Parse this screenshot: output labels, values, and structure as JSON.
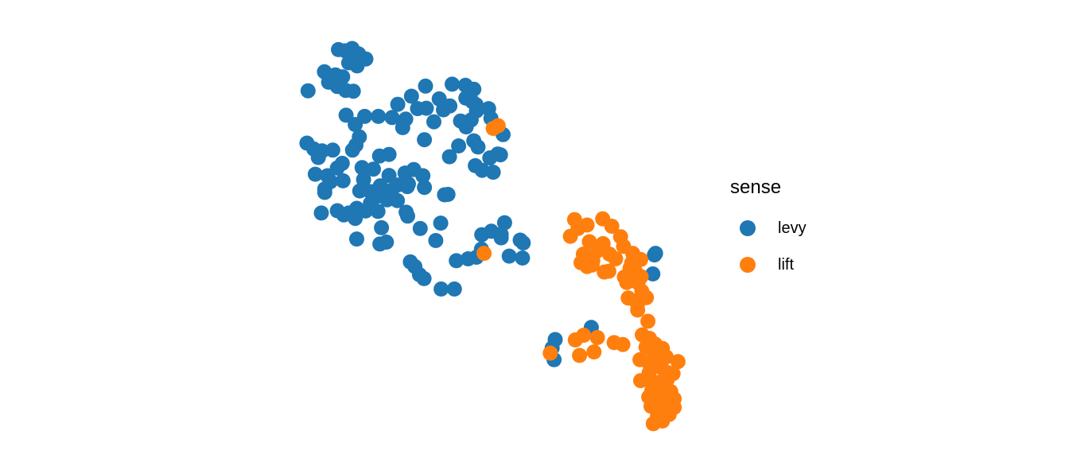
{
  "chart_data": {
    "type": "scatter",
    "xlabel": "",
    "ylabel": "",
    "xlim": [
      0,
      100
    ],
    "ylim": [
      0,
      100
    ],
    "legend_position": "right",
    "legend_title": "sense",
    "series": [
      {
        "name": "levy",
        "color": "#1f77b4",
        "points": [
          [
            11.2,
            99.5
          ],
          [
            13.0,
            99.2
          ],
          [
            14.8,
            99.8
          ],
          [
            16.5,
            98.4
          ],
          [
            18.4,
            97.1
          ],
          [
            13.9,
            96.1
          ],
          [
            16.1,
            95.3
          ],
          [
            7.5,
            93.8
          ],
          [
            10.4,
            93.0
          ],
          [
            12.3,
            92.5
          ],
          [
            8.6,
            91.1
          ],
          [
            10.9,
            90.0
          ],
          [
            3.2,
            88.9
          ],
          [
            13.1,
            89.0
          ],
          [
            15.1,
            88.8
          ],
          [
            34.1,
            90.1
          ],
          [
            41.1,
            90.6
          ],
          [
            44.6,
            90.3
          ],
          [
            46.8,
            89.3
          ],
          [
            30.4,
            87.5
          ],
          [
            37.7,
            86.8
          ],
          [
            44.7,
            87.0
          ],
          [
            46.4,
            86.1
          ],
          [
            26.8,
            85.4
          ],
          [
            32.0,
            84.3
          ],
          [
            34.3,
            84.4
          ],
          [
            38.8,
            84.0
          ],
          [
            47.4,
            85.3
          ],
          [
            50.7,
            84.3
          ],
          [
            40.5,
            85.0
          ],
          [
            13.2,
            82.6
          ],
          [
            18.1,
            82.3
          ],
          [
            25.3,
            82.0
          ],
          [
            43.3,
            81.1
          ],
          [
            47.5,
            83.7
          ],
          [
            21.7,
            82.3
          ],
          [
            15.6,
            80.2
          ],
          [
            28.9,
            81.6
          ],
          [
            36.3,
            80.9
          ],
          [
            46.1,
            81.4
          ],
          [
            51.3,
            81.8
          ],
          [
            44.8,
            79.6
          ],
          [
            28.1,
            79.4
          ],
          [
            16.7,
            77.0
          ],
          [
            54.5,
            77.6
          ],
          [
            33.8,
            76.3
          ],
          [
            46.8,
            76.0
          ],
          [
            2.9,
            75.4
          ],
          [
            15.8,
            74.9
          ],
          [
            4.7,
            73.9
          ],
          [
            6.9,
            73.4
          ],
          [
            9.7,
            73.6
          ],
          [
            14.9,
            73.6
          ],
          [
            24.5,
            72.5
          ],
          [
            22.0,
            72.1
          ],
          [
            42.8,
            74.7
          ],
          [
            47.9,
            74.4
          ],
          [
            53.8,
            72.4
          ],
          [
            51.0,
            71.6
          ],
          [
            53.1,
            72.6
          ],
          [
            5.9,
            71.7
          ],
          [
            12.2,
            70.2
          ],
          [
            10.9,
            69.0
          ],
          [
            40.4,
            71.9
          ],
          [
            47.2,
            69.6
          ],
          [
            51.9,
            67.9
          ],
          [
            17.4,
            69.1
          ],
          [
            20.4,
            68.7
          ],
          [
            49.0,
            68.4
          ],
          [
            31.0,
            68.6
          ],
          [
            33.4,
            67.0
          ],
          [
            5.1,
            67.4
          ],
          [
            8.3,
            67.0
          ],
          [
            17.8,
            66.0
          ],
          [
            24.5,
            67.1
          ],
          [
            28.7,
            67.7
          ],
          [
            9.1,
            65.5
          ],
          [
            12.4,
            65.7
          ],
          [
            22.2,
            64.4
          ],
          [
            26.7,
            64.6
          ],
          [
            29.6,
            64.9
          ],
          [
            7.6,
            63.6
          ],
          [
            7.6,
            62.7
          ],
          [
            16.8,
            63.1
          ],
          [
            19.6,
            62.9
          ],
          [
            24.9,
            63.2
          ],
          [
            29.3,
            64.2
          ],
          [
            33.8,
            64.0
          ],
          [
            39.1,
            62.1
          ],
          [
            40.0,
            62.2
          ],
          [
            21.4,
            61.7
          ],
          [
            25.1,
            62.2
          ],
          [
            19.6,
            59.9
          ],
          [
            24.0,
            60.8
          ],
          [
            26.7,
            60.6
          ],
          [
            16.0,
            58.6
          ],
          [
            10.9,
            58.0
          ],
          [
            12.6,
            56.9
          ],
          [
            29.0,
            57.6
          ],
          [
            18.3,
            57.9
          ],
          [
            21.6,
            57.8
          ],
          [
            6.7,
            57.4
          ],
          [
            13.9,
            57.4
          ],
          [
            29.4,
            56.6
          ],
          [
            22.5,
            53.6
          ],
          [
            15.6,
            56.0
          ],
          [
            32.7,
            53.4
          ],
          [
            38.1,
            54.8
          ],
          [
            54.9,
            54.9
          ],
          [
            51.4,
            52.7
          ],
          [
            54.0,
            51.9
          ],
          [
            16.0,
            50.7
          ],
          [
            36.8,
            50.3
          ],
          [
            48.9,
            51.8
          ],
          [
            54.0,
            51.0
          ],
          [
            59.0,
            50.4
          ],
          [
            23.8,
            49.9
          ],
          [
            22.1,
            49.4
          ],
          [
            48.8,
            48.1
          ],
          [
            59.8,
            49.7
          ],
          [
            56.1,
            46.3
          ],
          [
            42.2,
            45.1
          ],
          [
            30.1,
            44.8
          ],
          [
            31.3,
            43.6
          ],
          [
            45.3,
            45.6
          ],
          [
            47.5,
            46.0
          ],
          [
            32.5,
            41.5
          ],
          [
            33.7,
            40.5
          ],
          [
            59.6,
            45.8
          ],
          [
            41.7,
            37.8
          ],
          [
            38.2,
            37.8
          ],
          [
            94.3,
            46.6
          ],
          [
            94.6,
            47.0
          ],
          [
            93.9,
            41.7
          ],
          [
            77.7,
            27.9
          ],
          [
            68.2,
            24.8
          ],
          [
            67.4,
            22.6
          ],
          [
            67.9,
            19.6
          ]
        ]
      },
      {
        "name": "lift",
        "color": "#ff7f0e",
        "points": [
          [
            51.9,
            79.2
          ],
          [
            53.2,
            79.9
          ],
          [
            49.5,
            47.0
          ],
          [
            73.3,
            55.7
          ],
          [
            74.2,
            53.4
          ],
          [
            72.2,
            51.4
          ],
          [
            76.6,
            54.3
          ],
          [
            80.7,
            55.9
          ],
          [
            83.1,
            54.0
          ],
          [
            85.4,
            51.3
          ],
          [
            77.2,
            50.0
          ],
          [
            80.8,
            49.5
          ],
          [
            86.2,
            48.8
          ],
          [
            75.6,
            46.8
          ],
          [
            79.2,
            47.6
          ],
          [
            82.5,
            46.8
          ],
          [
            88.6,
            47.0
          ],
          [
            90.7,
            45.4
          ],
          [
            75.0,
            44.6
          ],
          [
            78.1,
            45.1
          ],
          [
            84.1,
            45.6
          ],
          [
            88.3,
            44.5
          ],
          [
            89.1,
            45.5
          ],
          [
            76.6,
            43.6
          ],
          [
            77.9,
            44.0
          ],
          [
            81.1,
            42.2
          ],
          [
            82.3,
            42.4
          ],
          [
            87.9,
            43.2
          ],
          [
            89.3,
            42.3
          ],
          [
            86.4,
            40.9
          ],
          [
            87.0,
            39.5
          ],
          [
            90.0,
            39.4
          ],
          [
            90.8,
            41.0
          ],
          [
            89.6,
            39.8
          ],
          [
            91.0,
            37.2
          ],
          [
            89.4,
            34.7
          ],
          [
            87.4,
            35.5
          ],
          [
            92.2,
            35.6
          ],
          [
            90.0,
            34.3
          ],
          [
            89.9,
            32.4
          ],
          [
            92.6,
            29.5
          ],
          [
            75.7,
            25.9
          ],
          [
            79.3,
            25.3
          ],
          [
            83.7,
            24.0
          ],
          [
            73.5,
            24.7
          ],
          [
            91.1,
            26.0
          ],
          [
            93.0,
            25.1
          ],
          [
            66.9,
            21.3
          ],
          [
            74.6,
            20.7
          ],
          [
            78.4,
            21.6
          ],
          [
            86.0,
            23.5
          ],
          [
            92.1,
            22.8
          ],
          [
            94.5,
            23.6
          ],
          [
            94.1,
            21.2
          ],
          [
            96.4,
            22.5
          ],
          [
            90.5,
            19.6
          ],
          [
            92.8,
            18.8
          ],
          [
            97.4,
            20.3
          ],
          [
            100.5,
            19.1
          ],
          [
            94.7,
            18.2
          ],
          [
            96.2,
            17.5
          ],
          [
            92.9,
            16.2
          ],
          [
            98.0,
            16.2
          ],
          [
            99.2,
            16.0
          ],
          [
            90.7,
            14.2
          ],
          [
            94.4,
            13.8
          ],
          [
            96.0,
            13.5
          ],
          [
            97.2,
            15.3
          ],
          [
            93.6,
            11.6
          ],
          [
            95.5,
            12.3
          ],
          [
            97.7,
            14.5
          ],
          [
            98.6,
            11.4
          ],
          [
            92.8,
            10.0
          ],
          [
            94.7,
            10.6
          ],
          [
            97.2,
            10.0
          ],
          [
            99.5,
            9.5
          ],
          [
            93.4,
            7.6
          ],
          [
            95.8,
            7.0
          ],
          [
            97.6,
            7.8
          ],
          [
            99.5,
            7.3
          ],
          [
            95.1,
            5.1
          ],
          [
            96.8,
            6.1
          ],
          [
            98.2,
            5.5
          ],
          [
            96.4,
            3.8
          ],
          [
            94.0,
            3.1
          ]
        ]
      }
    ]
  }
}
